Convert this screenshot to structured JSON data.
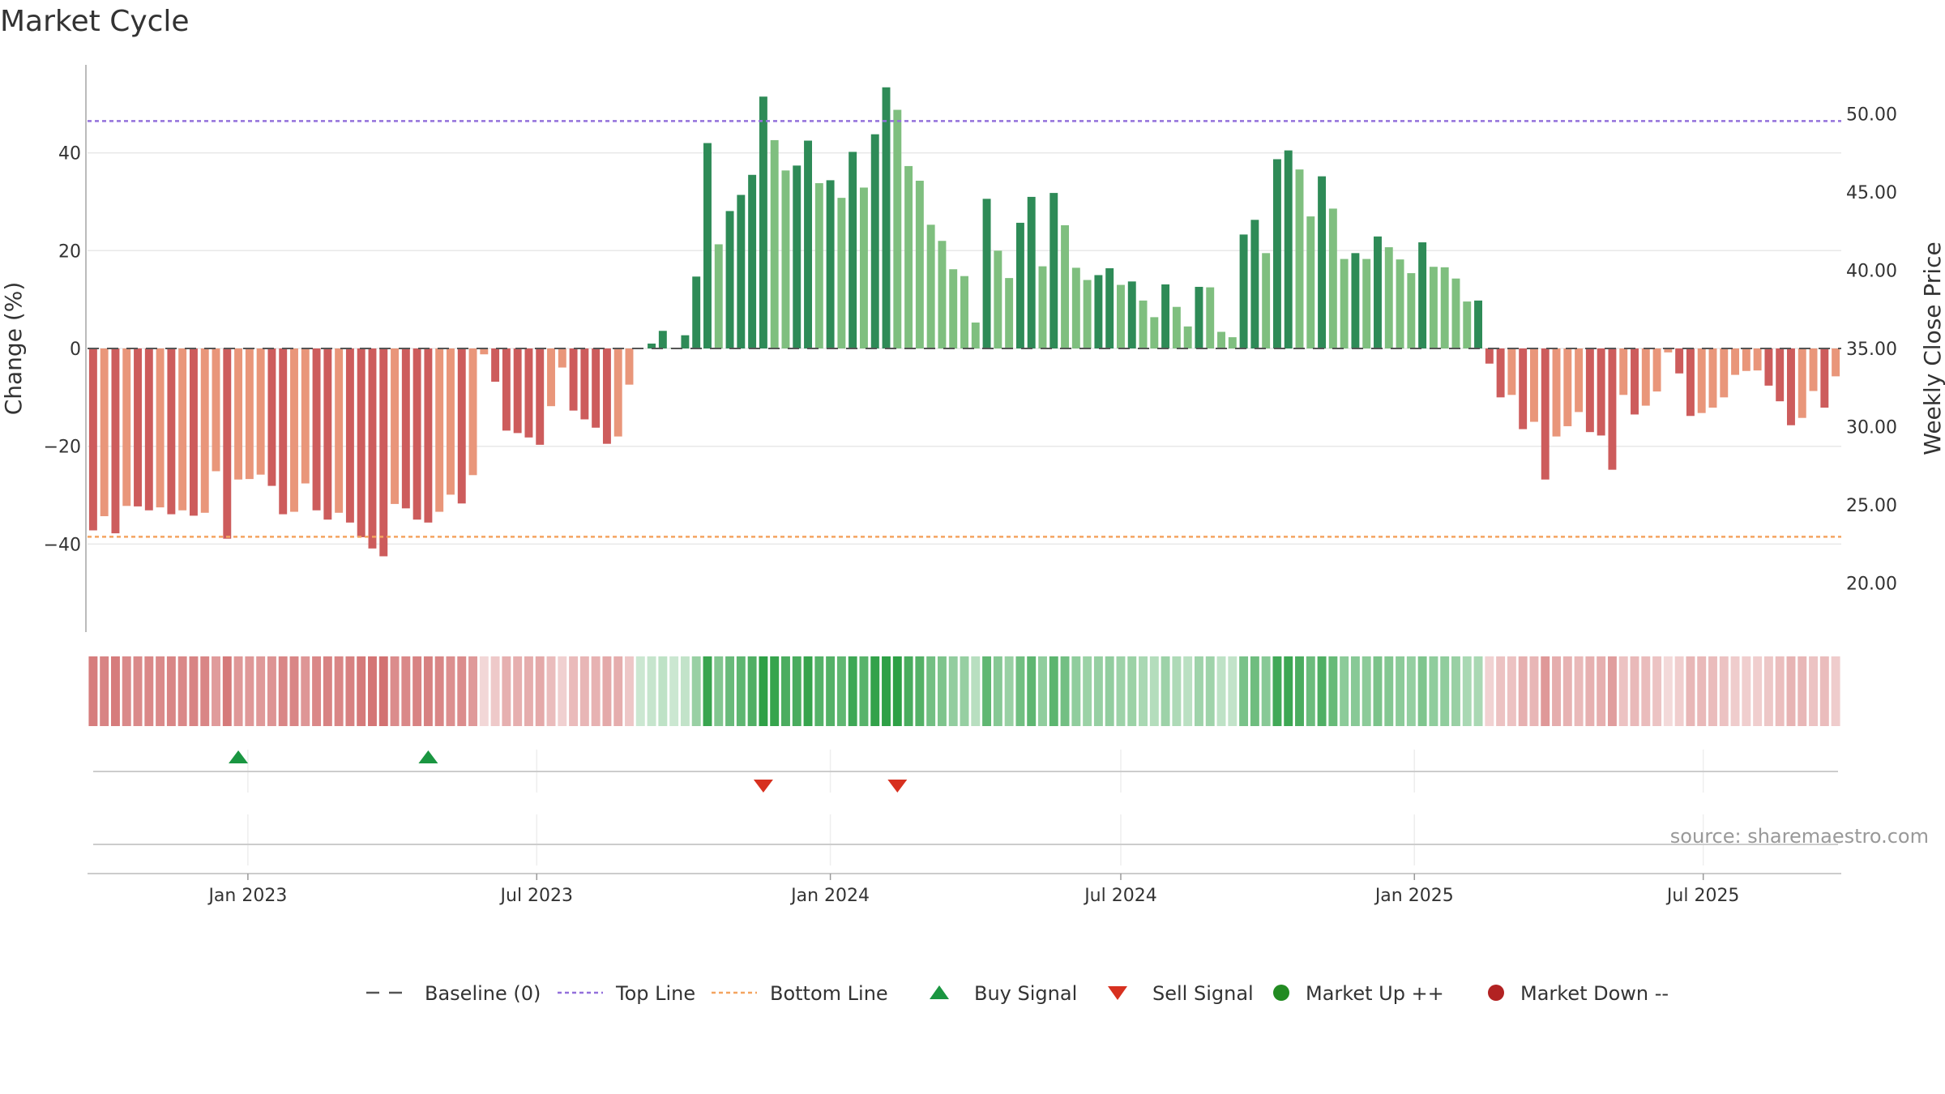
{
  "chart_data": {
    "type": "bar",
    "title": "Market Cycle",
    "ylabel": "Change (%)",
    "y2label": "Weekly Close Price",
    "ylim": [
      -58,
      58
    ],
    "y_ticks": [
      -40,
      -20,
      0,
      20,
      40
    ],
    "y_tick_labels": [
      "−40",
      "−20",
      "0",
      "20",
      "40"
    ],
    "y2_ticks": [
      20,
      25,
      30,
      35,
      40,
      45,
      50
    ],
    "y2_tick_labels": [
      "20.00",
      "25.00",
      "30.00",
      "35.00",
      "40.00",
      "45.00",
      "50.00"
    ],
    "y2_at_zero": 35,
    "y2_per_unit": 0.3125,
    "top_line": 46.5,
    "bottom_line": -38.5,
    "baseline": 0,
    "first_week": "2022-09-26",
    "x_ticks": [
      "2023-01-01",
      "2023-07-01",
      "2024-01-01",
      "2024-07-01",
      "2025-01-01",
      "2025-07-01"
    ],
    "x_tick_labels": [
      "Jan 2023",
      "Jul 2023",
      "Jan 2024",
      "Jul 2024",
      "Jan 2025",
      "Jul 2025"
    ],
    "values": [
      -37.2,
      -34.3,
      -37.8,
      -32.2,
      -32.3,
      -33.1,
      -32.5,
      -33.9,
      -33.1,
      -34.2,
      -33.6,
      -25.1,
      -38.9,
      -26.8,
      -26.7,
      -25.8,
      -28.1,
      -33.9,
      -33.4,
      -27.6,
      -33.1,
      -35,
      -33.6,
      -35.6,
      -38.6,
      -40.9,
      -42.5,
      -31.8,
      -32.7,
      -35,
      -35.6,
      -33.4,
      -29.9,
      -31.7,
      -25.9,
      -1.2,
      -6.8,
      -16.8,
      -17.3,
      -18.2,
      -19.7,
      -11.8,
      -3.9,
      -12.7,
      -14.5,
      -16.2,
      -19.5,
      -18,
      -7.4,
      0,
      1,
      3.6,
      0.1,
      2.7,
      14.7,
      42,
      21.3,
      28.1,
      31.4,
      35.5,
      51.5,
      42.6,
      36.4,
      37.4,
      42.5,
      33.8,
      34.4,
      30.8,
      40.2,
      32.9,
      43.8,
      53.4,
      48.8,
      37.3,
      34.3,
      25.3,
      22,
      16.2,
      14.8,
      5.3,
      30.6,
      20,
      14.4,
      25.7,
      31,
      16.8,
      31.8,
      25.2,
      16.5,
      14,
      15,
      16.4,
      13,
      13.7,
      9.8,
      6.4,
      13.1,
      8.5,
      4.5,
      12.6,
      12.5,
      3.4,
      2.3,
      23.3,
      26.3,
      19.5,
      38.7,
      40.5,
      36.6,
      27,
      35.2,
      28.6,
      18.3,
      19.5,
      18.3,
      22.9,
      20.7,
      18.2,
      15.4,
      21.7,
      16.7,
      16.6,
      14.3,
      9.6,
      9.8,
      -3.1,
      -10,
      -9.5,
      -16.5,
      -15,
      -26.8,
      -18,
      -15.9,
      -13,
      -17.1,
      -17.8,
      -24.8,
      -9.5,
      -13.5,
      -11.7,
      -8.8,
      -0.8,
      -5.1,
      -13.8,
      -13.2,
      -12.1,
      -10,
      -5.4,
      -4.6,
      -4.5,
      -7.6,
      -10.8,
      -15.7,
      -14.2,
      -8.7,
      -12.1,
      -5.7
    ],
    "buy_signals": [
      "2022-12-26",
      "2023-04-24"
    ],
    "sell_signals": [
      "2023-11-20",
      "2024-02-12"
    ],
    "legend": [
      "Baseline (0)",
      "Top Line",
      "Bottom Line",
      "Buy Signal",
      "Sell Signal",
      "Market Up ++",
      "Market Down --"
    ],
    "legend_position": "bottom",
    "grid": true,
    "source": "source: sharemaestro.com"
  },
  "colors": {
    "strong_up": "#2e8b57",
    "weak_up": "#7fbf7f",
    "strong_down": "#cd5c5c",
    "weak_down": "#e9967a",
    "top_line": "#9370db",
    "bottom_line": "#f4a460",
    "buy": "#1a9641",
    "sell": "#d7301f",
    "market_up": "#228b22",
    "market_down": "#b22222"
  }
}
